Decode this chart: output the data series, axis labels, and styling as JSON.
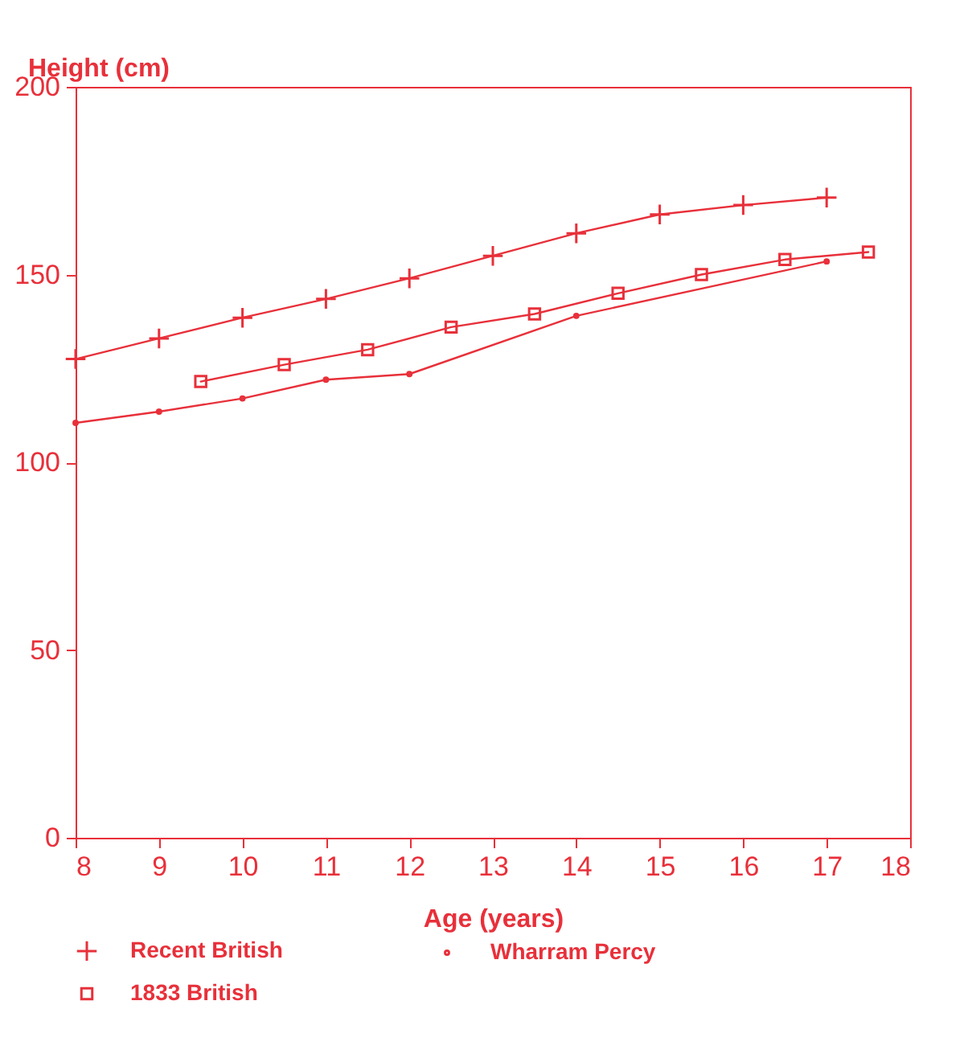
{
  "chart_data": {
    "type": "line",
    "xlabel": "Age (years)",
    "ylabel": "Height (cm)",
    "xlim": [
      8,
      18
    ],
    "xticks": [
      8,
      9,
      10,
      11,
      12,
      13,
      14,
      15,
      16,
      17,
      18
    ],
    "ylim": [
      0,
      200
    ],
    "yticks": [
      0,
      50,
      100,
      150,
      200
    ],
    "legend": "bottom",
    "series": [
      {
        "name": "Recent British",
        "color": "#e8303a",
        "marker": "cross",
        "x": [
          8,
          9,
          10,
          11,
          12,
          13,
          14,
          15,
          16,
          17
        ],
        "values": [
          127.5,
          133,
          138.5,
          143.5,
          149,
          155,
          161,
          166,
          168.5,
          170.5
        ]
      },
      {
        "name": "Wharram Percy",
        "color": "#e8303a",
        "marker": "circle",
        "x": [
          8,
          9,
          10,
          11,
          12,
          14,
          17
        ],
        "values": [
          110.5,
          113.5,
          117,
          122,
          123.5,
          139,
          153.5
        ]
      },
      {
        "name": "1833 British",
        "color": "#e8303a",
        "marker": "square",
        "x": [
          9.5,
          10.5,
          11.5,
          12.5,
          13.5,
          14.5,
          15.5,
          16.5,
          17.5
        ],
        "values": [
          121.5,
          126,
          130,
          136,
          139.5,
          145,
          150,
          154,
          156
        ]
      }
    ]
  }
}
